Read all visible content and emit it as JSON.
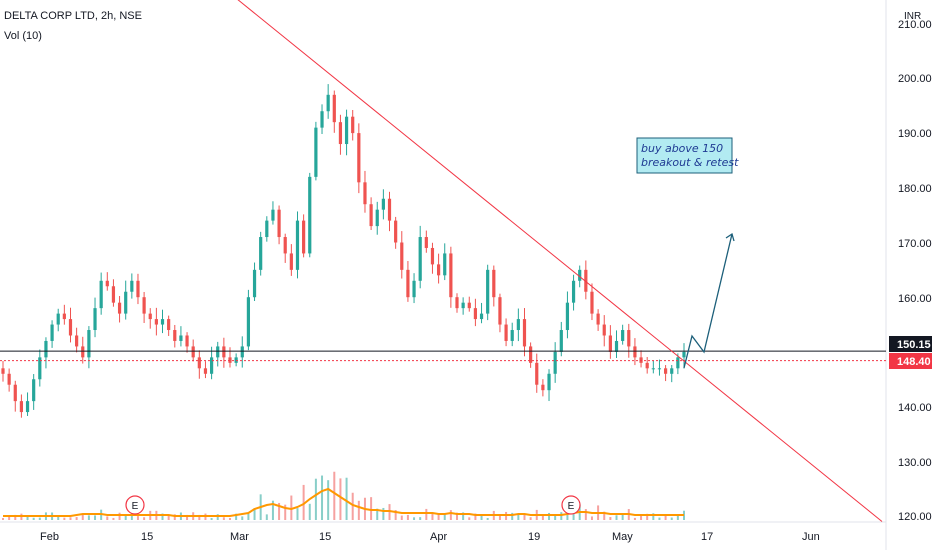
{
  "header": {
    "symbol": "DELTA CORP LTD, 2h, NSE",
    "volume_label": "Vol (10)",
    "currency": "INR"
  },
  "colors": {
    "up": "#26a69a",
    "down": "#ef5350",
    "trendline": "#f23645",
    "support": "#131722",
    "volume_ma": "#ff9800",
    "arrow": "#1c5f7a",
    "note_bg": "#b2ebf2",
    "note_border": "#1c5f7a",
    "last_price_bg": "#f23645",
    "level_bg": "#131722",
    "earnings": "#f23645"
  },
  "chart_data": {
    "type": "candlestick",
    "y_axis": {
      "ticks": [
        "120.00",
        "130.00",
        "140.00",
        "150.00",
        "160.00",
        "170.00",
        "180.00",
        "190.00",
        "200.00",
        "210.00"
      ],
      "tick_values": [
        120,
        130,
        140,
        150,
        160,
        170,
        180,
        190,
        200,
        210
      ]
    },
    "x_axis": {
      "ticks": [
        "Feb",
        "15",
        "Mar",
        "15",
        "Apr",
        "19",
        "May",
        "17",
        "Jun"
      ]
    },
    "price_levels": [
      {
        "label": "150.15",
        "value": 150.15
      },
      {
        "label": "148.40",
        "value": 148.4
      }
    ],
    "close_series": [
      146,
      144,
      141,
      139,
      141,
      145,
      149,
      152,
      155,
      157,
      156,
      153,
      151,
      149,
      154,
      158,
      163,
      162,
      159,
      157,
      161,
      163,
      160,
      157,
      156,
      155,
      156,
      154,
      152,
      153,
      151,
      149,
      147,
      146,
      149,
      151,
      149,
      148,
      149,
      151,
      160,
      165,
      171,
      174,
      176,
      171,
      168,
      165,
      174,
      168,
      182,
      191,
      194,
      197,
      192,
      188,
      193,
      190,
      181,
      177,
      173,
      176,
      178,
      174,
      170,
      165,
      160,
      163,
      171,
      169,
      166,
      164,
      168,
      160,
      158,
      159,
      158,
      156,
      157,
      165,
      160,
      155,
      152,
      154,
      156,
      151,
      148,
      144,
      143,
      146,
      150,
      154,
      159,
      163,
      165,
      161,
      157,
      155,
      153,
      150,
      152,
      154,
      151,
      149,
      148,
      147,
      147,
      147,
      146,
      147,
      149,
      150
    ],
    "trendline": {
      "from": {
        "t": "start",
        "price": 220
      },
      "to": {
        "t": "Jun",
        "price": 119
      }
    },
    "volume_ma": [
      3,
      3,
      3,
      3,
      3,
      3,
      3,
      3,
      3,
      3,
      3,
      3,
      4,
      5,
      5,
      5,
      5,
      4,
      4,
      4,
      4,
      4,
      4,
      4,
      4,
      4,
      4,
      4,
      3,
      3,
      3,
      3,
      3,
      3,
      3,
      3,
      3,
      3,
      4,
      5,
      6,
      10,
      12,
      14,
      15,
      13,
      11,
      10,
      12,
      15,
      20,
      24,
      28,
      30,
      26,
      22,
      18,
      14,
      12,
      10,
      9,
      9,
      8,
      8,
      7,
      6,
      6,
      6,
      6,
      6,
      6,
      5,
      5,
      6,
      5,
      5,
      5,
      4,
      4,
      4,
      4,
      4,
      4,
      4,
      5,
      5,
      4,
      4,
      4,
      4,
      4,
      4,
      5,
      6,
      7,
      7,
      6,
      6,
      6,
      5,
      5,
      5,
      5,
      4,
      4,
      4,
      4,
      4,
      4,
      4,
      4,
      4
    ],
    "annotations": {
      "note_line1": "buy above 150",
      "note_line2": "breakout & retest",
      "earnings_marker": "E"
    }
  }
}
